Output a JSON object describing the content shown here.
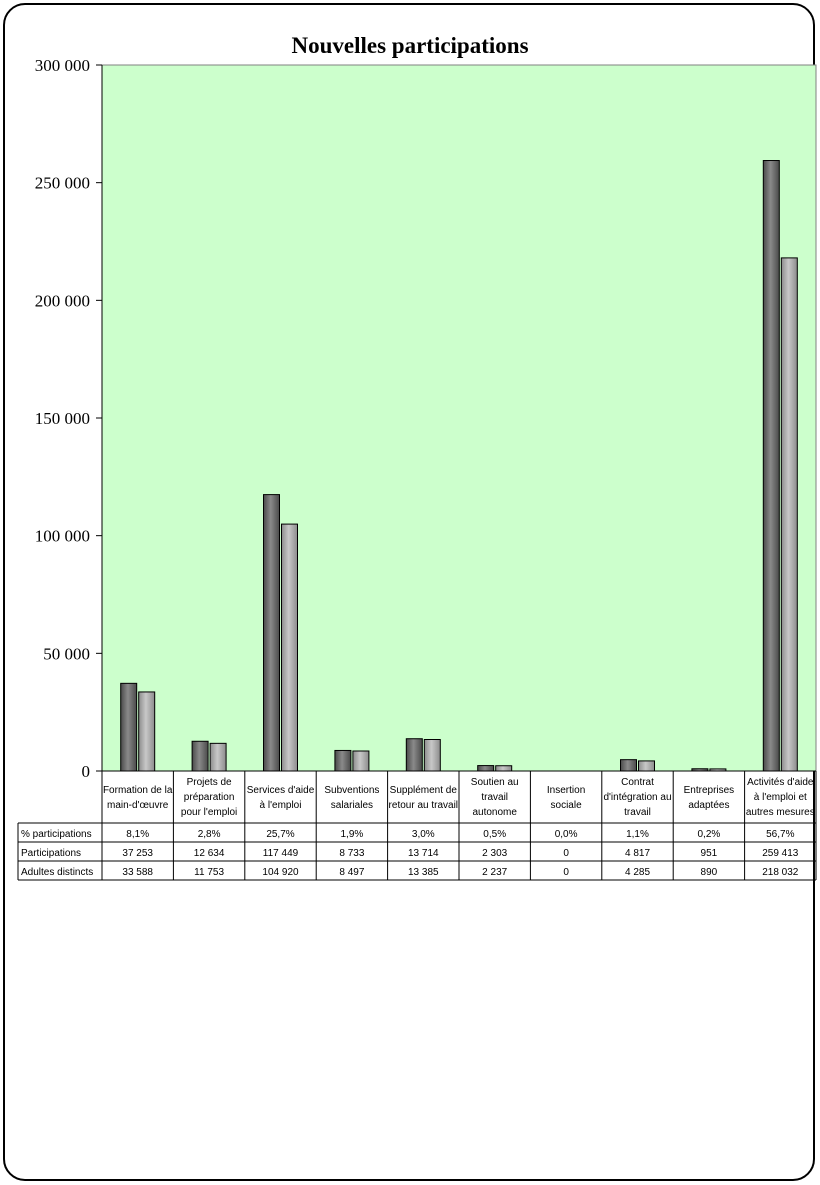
{
  "chart_data": {
    "type": "bar",
    "title": "Nouvelles participations",
    "categories": [
      [
        "Formation de la",
        "main-d'œuvre"
      ],
      [
        "Projets de",
        "préparation",
        "pour l'emploi"
      ],
      [
        "Services d'aide",
        "à l'emploi"
      ],
      [
        "Subventions",
        "salariales"
      ],
      [
        "Supplément de",
        "retour au travail"
      ],
      [
        "Soutien au",
        "travail",
        "autonome"
      ],
      [
        "Insertion",
        "sociale"
      ],
      [
        "Contrat",
        "d'intégration au",
        "travail"
      ],
      [
        "Entreprises",
        "adaptées"
      ],
      [
        "Activités d'aide",
        "à l'emploi et",
        "autres mesures"
      ]
    ],
    "series": [
      {
        "name": "Participations",
        "values": [
          37253,
          12634,
          117449,
          8733,
          13714,
          2303,
          0,
          4817,
          951,
          259413
        ]
      },
      {
        "name": "Adultes distincts",
        "values": [
          33588,
          11753,
          104920,
          8497,
          13385,
          2237,
          0,
          4285,
          890,
          218032
        ]
      }
    ],
    "ylim": [
      0,
      300000
    ],
    "yticks": [
      "300 000",
      "250 000",
      "200 000",
      "150 000",
      "100 000",
      "50 000",
      "0"
    ],
    "ytick_values": [
      300000,
      250000,
      200000,
      150000,
      100000,
      50000,
      0
    ],
    "table": {
      "rows": [
        {
          "label": "% participations",
          "cells": [
            "8,1%",
            "2,8%",
            "25,7%",
            "1,9%",
            "3,0%",
            "0,5%",
            "0,0%",
            "1,1%",
            "0,2%",
            "56,7%"
          ]
        },
        {
          "label": "Participations",
          "cells": [
            "37 253",
            "12 634",
            "117 449",
            "8 733",
            "13 714",
            "2 303",
            "0",
            "4 817",
            "951",
            "259 413"
          ]
        },
        {
          "label": "Adultes distincts",
          "cells": [
            "33 588",
            "11 753",
            "104 920",
            "8 497",
            "13 385",
            "2 237",
            "0",
            "4 285",
            "890",
            "218 032"
          ]
        }
      ]
    },
    "colors": {
      "plot_bg": "#ccffcc",
      "series1": "#6e6e6e",
      "series2": "#a9a9a9"
    },
    "grid": false,
    "legend": "none"
  }
}
